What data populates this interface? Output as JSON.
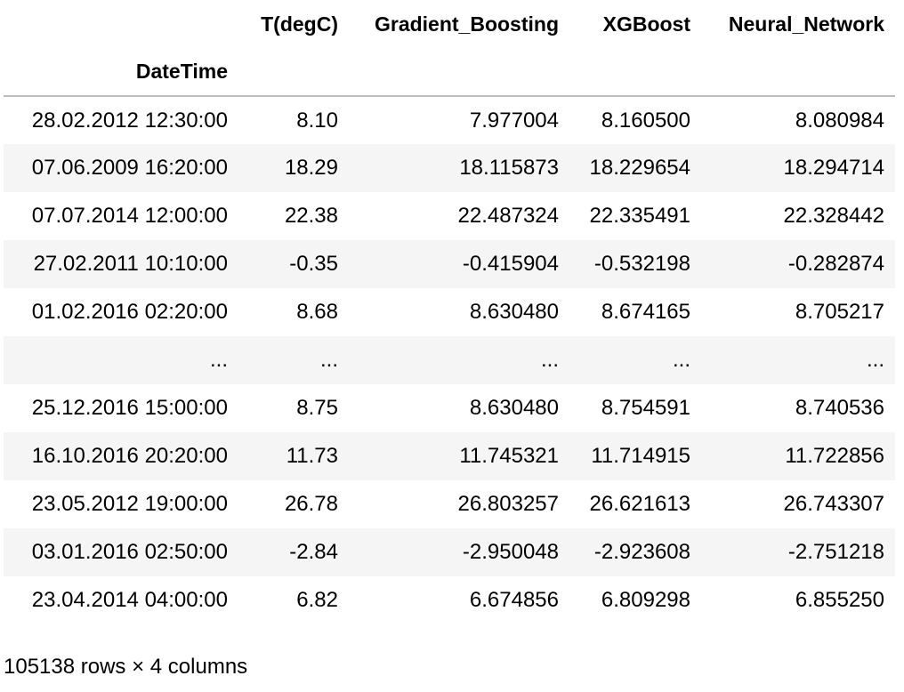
{
  "table": {
    "columns": [
      "T(degC)",
      "Gradient_Boosting",
      "XGBoost",
      "Neural_Network"
    ],
    "index_name": "DateTime",
    "rows": [
      {
        "index": "28.02.2012 12:30:00",
        "values": [
          "8.10",
          "7.977004",
          "8.160500",
          "8.080984"
        ]
      },
      {
        "index": "07.06.2009 16:20:00",
        "values": [
          "18.29",
          "18.115873",
          "18.229654",
          "18.294714"
        ]
      },
      {
        "index": "07.07.2014 12:00:00",
        "values": [
          "22.38",
          "22.487324",
          "22.335491",
          "22.328442"
        ]
      },
      {
        "index": "27.02.2011 10:10:00",
        "values": [
          "-0.35",
          "-0.415904",
          "-0.532198",
          "-0.282874"
        ]
      },
      {
        "index": "01.02.2016 02:20:00",
        "values": [
          "8.68",
          "8.630480",
          "8.674165",
          "8.705217"
        ]
      },
      {
        "index": "...",
        "values": [
          "...",
          "...",
          "...",
          "..."
        ]
      },
      {
        "index": "25.12.2016 15:00:00",
        "values": [
          "8.75",
          "8.630480",
          "8.754591",
          "8.740536"
        ]
      },
      {
        "index": "16.10.2016 20:20:00",
        "values": [
          "11.73",
          "11.745321",
          "11.714915",
          "11.722856"
        ]
      },
      {
        "index": "23.05.2012 19:00:00",
        "values": [
          "26.78",
          "26.803257",
          "26.621613",
          "26.743307"
        ]
      },
      {
        "index": "03.01.2016 02:50:00",
        "values": [
          "-2.84",
          "-2.950048",
          "-2.923608",
          "-2.751218"
        ]
      },
      {
        "index": "23.04.2014 04:00:00",
        "values": [
          "6.82",
          "6.674856",
          "6.809298",
          "6.855250"
        ]
      }
    ]
  },
  "shape_text": "105138 rows × 4 columns"
}
